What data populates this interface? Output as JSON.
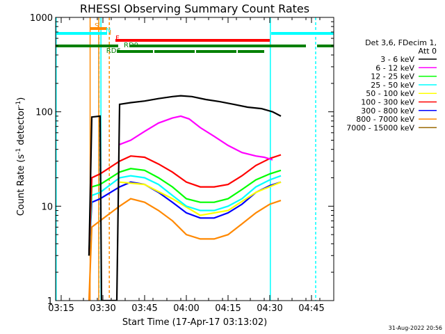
{
  "chart_data": {
    "type": "line",
    "title": "RHESSI Observing Summary Count Rates",
    "xlabel": "Start Time (17-Apr-17 03:13:02)",
    "ylabel": "Count Rate (s⁻¹ detector⁻¹)",
    "ylabel_main": "Count Rate (s",
    "ylabel_sup1": "-1",
    "ylabel_mid": " detector",
    "ylabel_sup2": "-1",
    "ylabel_end": ")",
    "yscale": "log",
    "ylim": [
      1,
      1000
    ],
    "xlim": [
      "03:13",
      "04:53"
    ],
    "x_ticks": [
      "03:15",
      "03:30",
      "03:45",
      "04:00",
      "04:15",
      "04:30",
      "04:45"
    ],
    "y_ticks": [
      "1",
      "10",
      "100",
      "1000"
    ],
    "legend_header": [
      "Det 3,6, FDecim 1,",
      "Att 0"
    ],
    "legend_position": "right",
    "footer": "31-Aug-2022 20:56",
    "flags": {
      "labels": [
        "S",
        "N",
        "I",
        "F",
        "RD0",
        "RD6"
      ]
    },
    "series": [
      {
        "name": "3 - 6 keV",
        "color": "#000000",
        "points": [
          [
            "03:25",
            3
          ],
          [
            "03:26",
            88
          ],
          [
            "03:29",
            90
          ],
          [
            "03:29.5",
            1
          ],
          [
            "03:35",
            1
          ],
          [
            "03:36",
            120
          ],
          [
            "03:40",
            125
          ],
          [
            "03:45",
            130
          ],
          [
            "03:50",
            138
          ],
          [
            "03:55",
            145
          ],
          [
            "03:58",
            148
          ],
          [
            "04:02",
            145
          ],
          [
            "04:07",
            135
          ],
          [
            "04:12",
            128
          ],
          [
            "04:17",
            120
          ],
          [
            "04:22",
            112
          ],
          [
            "04:27",
            108
          ],
          [
            "04:31",
            100
          ],
          [
            "04:34",
            90
          ]
        ]
      },
      {
        "name": "6 - 12 keV",
        "color": "#ff00ff",
        "points": [
          [
            "03:36",
            45
          ],
          [
            "03:40",
            50
          ],
          [
            "03:45",
            62
          ],
          [
            "03:50",
            76
          ],
          [
            "03:55",
            86
          ],
          [
            "03:58",
            90
          ],
          [
            "04:01",
            84
          ],
          [
            "04:05",
            68
          ],
          [
            "04:10",
            55
          ],
          [
            "04:15",
            44
          ],
          [
            "04:20",
            37
          ],
          [
            "04:25",
            34
          ],
          [
            "04:28",
            33
          ],
          [
            "04:31",
            31
          ]
        ]
      },
      {
        "name": "12 - 25 keV",
        "color": "#00ff00",
        "points": [
          [
            "03:25",
            3
          ],
          [
            "03:26",
            16
          ],
          [
            "03:29",
            17
          ],
          [
            "03:36",
            23
          ],
          [
            "03:40",
            25
          ],
          [
            "03:45",
            24
          ],
          [
            "03:50",
            20
          ],
          [
            "03:55",
            16
          ],
          [
            "04:00",
            12
          ],
          [
            "04:05",
            11
          ],
          [
            "04:10",
            11
          ],
          [
            "04:15",
            12
          ],
          [
            "04:20",
            15
          ],
          [
            "04:25",
            19
          ],
          [
            "04:30",
            22
          ],
          [
            "04:34",
            24
          ]
        ]
      },
      {
        "name": "25 - 50 keV",
        "color": "#00ffff",
        "points": [
          [
            "03:25",
            3
          ],
          [
            "03:26",
            13
          ],
          [
            "03:29",
            14
          ],
          [
            "03:36",
            20
          ],
          [
            "03:40",
            21
          ],
          [
            "03:45",
            20
          ],
          [
            "03:50",
            17
          ],
          [
            "03:55",
            13
          ],
          [
            "04:00",
            10
          ],
          [
            "04:05",
            9
          ],
          [
            "04:10",
            9
          ],
          [
            "04:15",
            10
          ],
          [
            "04:20",
            12
          ],
          [
            "04:25",
            16
          ],
          [
            "04:30",
            19
          ],
          [
            "04:34",
            21
          ]
        ]
      },
      {
        "name": "50 - 100 keV",
        "color": "#ffff00",
        "points": [
          [
            "03:36",
            18
          ],
          [
            "03:45",
            17
          ],
          [
            "03:55",
            12
          ],
          [
            "04:05",
            8
          ],
          [
            "04:15",
            9
          ],
          [
            "04:25",
            14
          ],
          [
            "04:34",
            18
          ]
        ]
      },
      {
        "name": "100 - 300 keV",
        "color": "#ff0000",
        "points": [
          [
            "03:25",
            3
          ],
          [
            "03:26",
            20
          ],
          [
            "03:29",
            22
          ],
          [
            "03:36",
            30
          ],
          [
            "03:40",
            34
          ],
          [
            "03:45",
            33
          ],
          [
            "03:50",
            28
          ],
          [
            "03:55",
            23
          ],
          [
            "04:00",
            18
          ],
          [
            "04:05",
            16
          ],
          [
            "04:10",
            16
          ],
          [
            "04:15",
            17
          ],
          [
            "04:20",
            21
          ],
          [
            "04:25",
            27
          ],
          [
            "04:30",
            32
          ],
          [
            "04:34",
            35
          ]
        ]
      },
      {
        "name": "300 - 800 keV",
        "color": "#0000ff",
        "points": [
          [
            "03:25",
            3
          ],
          [
            "03:26",
            11
          ],
          [
            "03:29",
            12
          ],
          [
            "03:36",
            16
          ],
          [
            "03:40",
            18
          ],
          [
            "03:45",
            17
          ],
          [
            "03:50",
            14
          ],
          [
            "03:55",
            11
          ],
          [
            "04:00",
            8.5
          ],
          [
            "04:05",
            7.5
          ],
          [
            "04:10",
            7.5
          ],
          [
            "04:15",
            8.5
          ],
          [
            "04:20",
            10.5
          ],
          [
            "04:25",
            14
          ],
          [
            "04:30",
            16.5
          ],
          [
            "04:34",
            18
          ]
        ]
      },
      {
        "name": "800 - 7000 keV",
        "color": "#ff8800",
        "points": [
          [
            "03:25",
            1
          ],
          [
            "03:26",
            6
          ],
          [
            "03:29",
            7
          ],
          [
            "03:36",
            10
          ],
          [
            "03:40",
            12
          ],
          [
            "03:45",
            11
          ],
          [
            "03:50",
            9
          ],
          [
            "03:55",
            7
          ],
          [
            "04:00",
            5
          ],
          [
            "04:05",
            4.5
          ],
          [
            "04:10",
            4.5
          ],
          [
            "04:15",
            5
          ],
          [
            "04:20",
            6.5
          ],
          [
            "04:25",
            8.5
          ],
          [
            "04:30",
            10.5
          ],
          [
            "04:34",
            11.5
          ]
        ]
      },
      {
        "name": "7000 - 15000 keV",
        "color": "#996600",
        "points": []
      }
    ]
  }
}
